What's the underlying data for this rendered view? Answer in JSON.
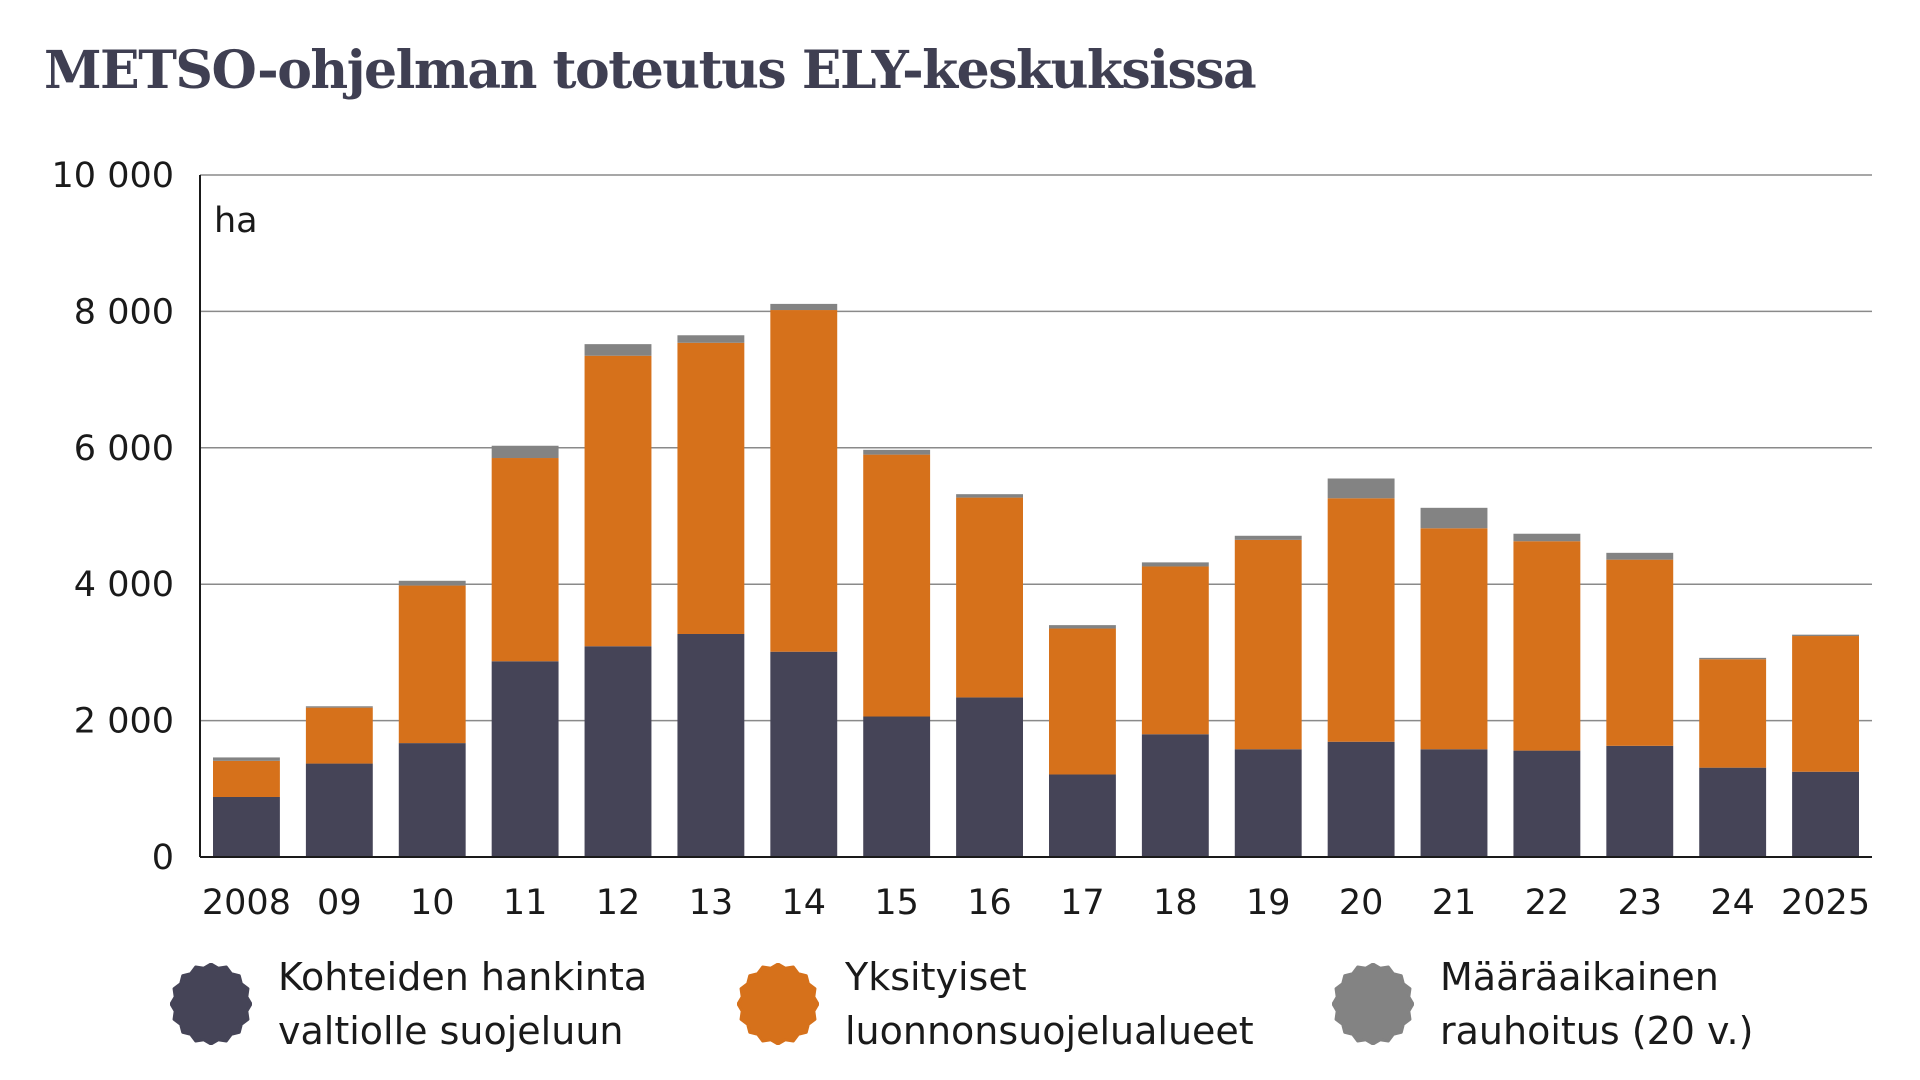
{
  "title": "METSO-ohjelman toteutus ELY-keskuksissa",
  "chart_data": {
    "type": "bar",
    "stacked": true,
    "title": "METSO-ohjelman toteutus ELY-keskuksissa",
    "unit_label": "ha",
    "categories": [
      "2008",
      "09",
      "10",
      "11",
      "12",
      "13",
      "14",
      "15",
      "16",
      "17",
      "18",
      "19",
      "20",
      "21",
      "22",
      "23",
      "24",
      "2025"
    ],
    "ylim": [
      0,
      10000
    ],
    "yticks": [
      0,
      2000,
      4000,
      6000,
      8000,
      10000
    ],
    "ytick_labels": [
      "0",
      "2 000",
      "4 000",
      "6 000",
      "8 000",
      "10 000"
    ],
    "grid": true,
    "legend_position": "bottom",
    "series": [
      {
        "name": "Kohteiden hankinta valtiolle suojeluun",
        "color": "#454457",
        "values": [
          880,
          1370,
          1670,
          2870,
          3090,
          3270,
          3010,
          2060,
          2340,
          1210,
          1800,
          1580,
          1690,
          1580,
          1560,
          1630,
          1310,
          1250
        ]
      },
      {
        "name": "Yksityiset luonnonsuojelualueet",
        "color": "#d6711b",
        "values": [
          530,
          820,
          2310,
          2980,
          4260,
          4270,
          5010,
          3840,
          2930,
          2140,
          2460,
          3070,
          3570,
          3240,
          3070,
          2730,
          1590,
          1990
        ]
      },
      {
        "name": "Määräaikainen rauhoitus (20 v.)",
        "color": "#838383",
        "values": [
          50,
          20,
          70,
          180,
          170,
          110,
          90,
          70,
          50,
          50,
          60,
          60,
          290,
          300,
          110,
          100,
          20,
          20
        ]
      }
    ]
  },
  "legend": {
    "items": [
      {
        "label": "Kohteiden hankinta\nvaltiolle suojeluun",
        "color": "#454457"
      },
      {
        "label": "Yksityiset\nluonnonsuojelualueet",
        "color": "#d6711b"
      },
      {
        "label": "Määräaikainen\nrauhoitus (20 v.)",
        "color": "#838383"
      }
    ]
  }
}
